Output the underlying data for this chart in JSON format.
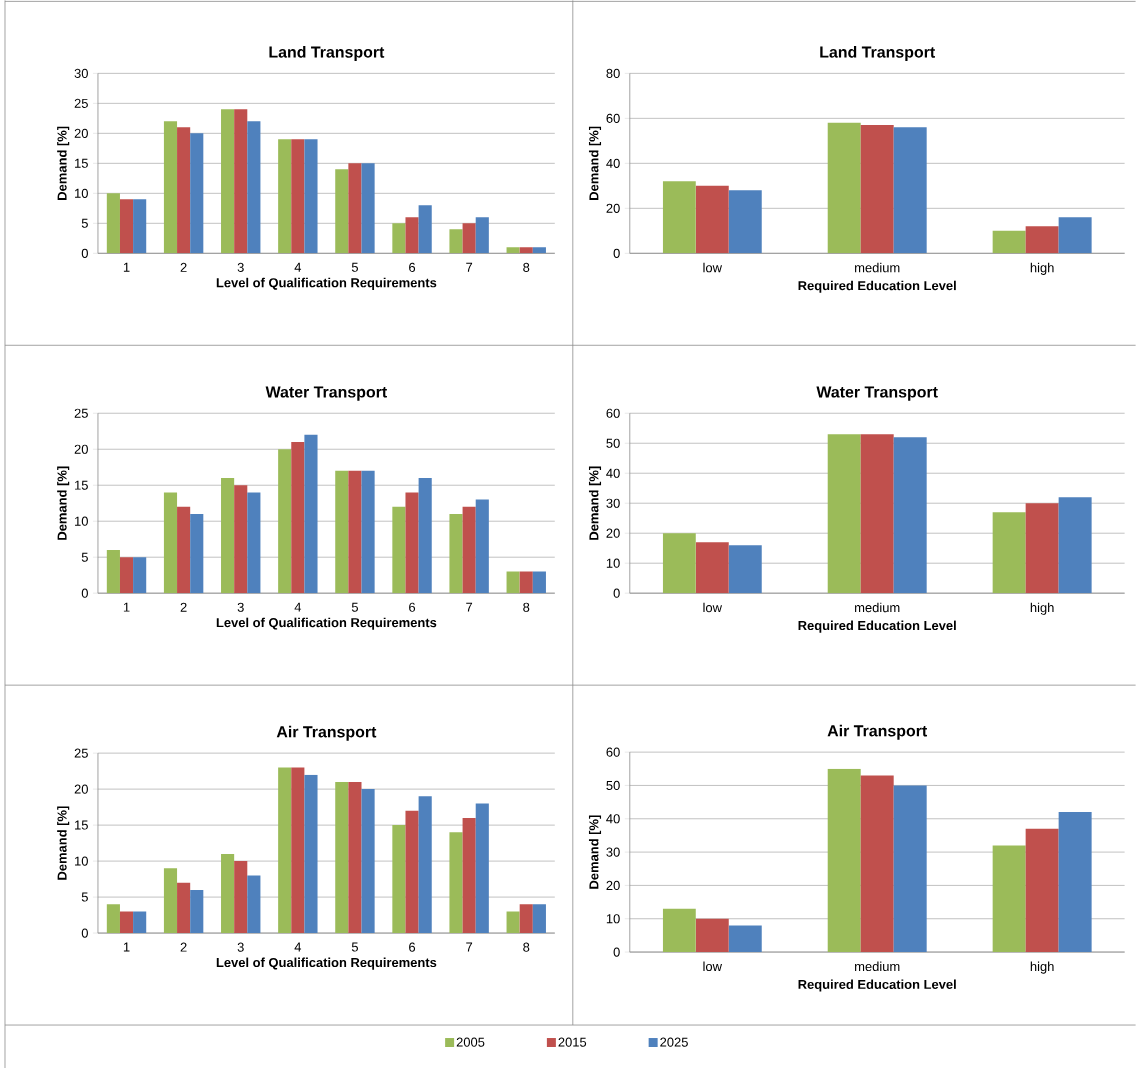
{
  "chart_data": [
    {
      "type": "bar",
      "title": "Land Transport",
      "xlabel": "Level of Qualification Requirements",
      "ylabel": "Demand [%]",
      "categories": [
        "1",
        "2",
        "3",
        "4",
        "5",
        "6",
        "7",
        "8"
      ],
      "ylim": [
        0,
        30
      ],
      "yticks": [
        0,
        5,
        10,
        15,
        20,
        25,
        30
      ],
      "grid": "y",
      "series": [
        {
          "color": "#9bbb59",
          "values": [
            10,
            22,
            24,
            19,
            14,
            5,
            4,
            1
          ]
        },
        {
          "color": "#c0504d",
          "values": [
            9,
            21,
            24,
            19,
            15,
            6,
            5,
            1
          ]
        },
        {
          "color": "#4f81bd",
          "values": [
            9,
            20,
            22,
            19,
            15,
            8,
            6,
            1
          ]
        }
      ]
    },
    {
      "type": "bar",
      "title": "Land Transport",
      "xlabel": "Required Education Level",
      "ylabel": "Demand [%]",
      "categories": [
        "low",
        "medium",
        "high"
      ],
      "ylim": [
        0,
        80
      ],
      "yticks": [
        0,
        20,
        40,
        60,
        80
      ],
      "grid": "y",
      "series": [
        {
          "color": "#9bbb59",
          "values": [
            32,
            58,
            10
          ]
        },
        {
          "color": "#c0504d",
          "values": [
            30,
            57,
            12
          ]
        },
        {
          "color": "#4f81bd",
          "values": [
            28,
            56,
            16
          ]
        }
      ]
    },
    {
      "type": "bar",
      "title": "Water Transport",
      "xlabel": "Level of Qualification Requirements",
      "ylabel": "Demand [%]",
      "categories": [
        "1",
        "2",
        "3",
        "4",
        "5",
        "6",
        "7",
        "8"
      ],
      "ylim": [
        0,
        25
      ],
      "yticks": [
        0,
        5,
        10,
        15,
        20,
        25
      ],
      "grid": "y",
      "series": [
        {
          "color": "#9bbb59",
          "values": [
            6,
            14,
            16,
            20,
            17,
            12,
            11,
            3
          ]
        },
        {
          "color": "#c0504d",
          "values": [
            5,
            12,
            15,
            21,
            17,
            14,
            12,
            3
          ]
        },
        {
          "color": "#4f81bd",
          "values": [
            5,
            11,
            14,
            22,
            17,
            16,
            13,
            3
          ]
        }
      ]
    },
    {
      "type": "bar",
      "title": "Water Transport",
      "xlabel": "Required Education Level",
      "ylabel": "Demand [%]",
      "categories": [
        "low",
        "medium",
        "high"
      ],
      "ylim": [
        0,
        60
      ],
      "yticks": [
        0,
        10,
        20,
        30,
        40,
        50,
        60
      ],
      "grid": "y",
      "series": [
        {
          "color": "#9bbb59",
          "values": [
            20,
            53,
            27
          ]
        },
        {
          "color": "#c0504d",
          "values": [
            17,
            53,
            30
          ]
        },
        {
          "color": "#4f81bd",
          "values": [
            16,
            52,
            32
          ]
        }
      ]
    },
    {
      "type": "bar",
      "title": "Air Transport",
      "xlabel": "Level of Qualification Requirements",
      "ylabel": "Demand [%]",
      "categories": [
        "1",
        "2",
        "3",
        "4",
        "5",
        "6",
        "7",
        "8"
      ],
      "ylim": [
        0,
        25
      ],
      "yticks": [
        0,
        5,
        10,
        15,
        20,
        25
      ],
      "grid": "y",
      "legend": "bottom",
      "series": [
        {
          "name": "2005",
          "color": "#9bbb59",
          "values": [
            4,
            9,
            11,
            23,
            21,
            15,
            14,
            3
          ]
        },
        {
          "name": "2015",
          "color": "#c0504d",
          "values": [
            3,
            7,
            10,
            23,
            21,
            17,
            16,
            4
          ]
        },
        {
          "name": "2025",
          "color": "#4f81bd",
          "values": [
            3,
            6,
            8,
            22,
            20,
            19,
            18,
            4
          ]
        }
      ]
    },
    {
      "type": "bar",
      "title": "Air Transport",
      "xlabel": "Required Education Level",
      "ylabel": "Demand [%]",
      "categories": [
        "low",
        "medium",
        "high"
      ],
      "ylim": [
        0,
        60
      ],
      "yticks": [
        0,
        10,
        20,
        30,
        40,
        50,
        60
      ],
      "grid": "y",
      "series": [
        {
          "color": "#9bbb59",
          "values": [
            13,
            55,
            32
          ]
        },
        {
          "color": "#c0504d",
          "values": [
            10,
            53,
            37
          ]
        },
        {
          "color": "#4f81bd",
          "values": [
            8,
            50,
            42
          ]
        }
      ]
    }
  ]
}
